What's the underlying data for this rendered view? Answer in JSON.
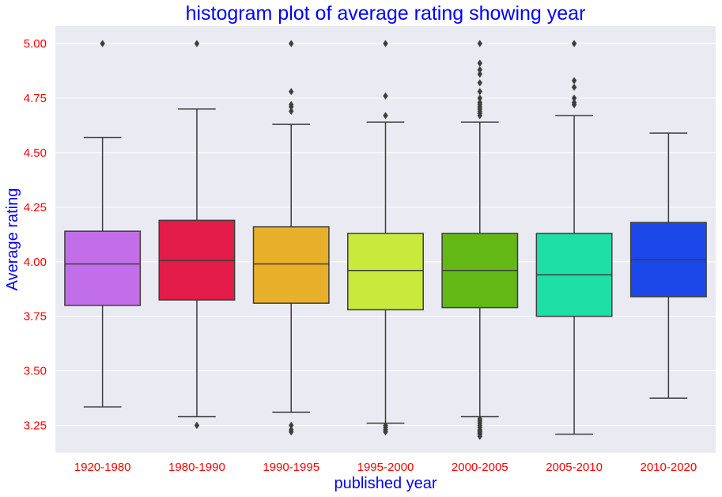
{
  "chart_data": {
    "type": "box",
    "title": "histogram plot of average rating showing year",
    "xlabel": "published year",
    "ylabel": "Average rating",
    "ylim": [
      3.125,
      5.08
    ],
    "yticks": [
      3.25,
      3.5,
      3.75,
      4.0,
      4.25,
      4.5,
      4.75,
      5.0
    ],
    "ytick_labels": [
      "3.25",
      "3.50",
      "3.75",
      "4.00",
      "4.25",
      "4.50",
      "4.75",
      "5.00"
    ],
    "grid": true,
    "colors": {
      "title": "#0000ff",
      "axis_label": "#0000ff",
      "tick_label": "#ff0000",
      "background": "#eaeaf2",
      "grid": "#ffffff",
      "lines": "#3d3d3d"
    },
    "categories": [
      "1920-1980",
      "1980-1990",
      "1990-1995",
      "1995-2000",
      "2000-2005",
      "2005-2010",
      "2010-2020"
    ],
    "boxes": [
      {
        "category": "1920-1980",
        "color": "#c26ee8",
        "whisker_low": 3.335,
        "q1": 3.8,
        "median": 3.99,
        "q3": 4.14,
        "whisker_high": 4.57,
        "outliers": [
          5.0
        ]
      },
      {
        "category": "1980-1990",
        "color": "#e31c4a",
        "whisker_low": 3.29,
        "q1": 3.825,
        "median": 4.005,
        "q3": 4.19,
        "whisker_high": 4.7,
        "outliers": [
          3.25,
          5.0
        ]
      },
      {
        "category": "1990-1995",
        "color": "#e8b02a",
        "whisker_low": 3.31,
        "q1": 3.81,
        "median": 3.99,
        "q3": 4.16,
        "whisker_high": 4.63,
        "outliers": [
          3.22,
          3.23,
          3.25,
          4.69,
          4.71,
          4.72,
          4.78,
          5.0
        ]
      },
      {
        "category": "1995-2000",
        "color": "#c8ea3c",
        "whisker_low": 3.26,
        "q1": 3.78,
        "median": 3.96,
        "q3": 4.13,
        "whisker_high": 4.64,
        "outliers": [
          3.22,
          3.23,
          3.24,
          3.25,
          4.67,
          4.76,
          5.0
        ]
      },
      {
        "category": "2000-2005",
        "color": "#64b816",
        "whisker_low": 3.29,
        "q1": 3.79,
        "median": 3.96,
        "q3": 4.13,
        "whisker_high": 4.64,
        "outliers": [
          3.2,
          3.21,
          3.215,
          3.22,
          3.225,
          3.23,
          3.24,
          3.25,
          3.26,
          3.27,
          3.28,
          4.67,
          4.68,
          4.69,
          4.7,
          4.71,
          4.72,
          4.73,
          4.75,
          4.78,
          4.82,
          4.86,
          4.88,
          4.91,
          5.0
        ]
      },
      {
        "category": "2005-2010",
        "color": "#1edfa6",
        "whisker_low": 3.21,
        "q1": 3.75,
        "median": 3.94,
        "q3": 4.13,
        "whisker_high": 4.67,
        "outliers": [
          4.72,
          4.73,
          4.75,
          4.8,
          4.83,
          5.0
        ]
      },
      {
        "category": "2010-2020",
        "color": "#1c48ea",
        "whisker_low": 3.375,
        "q1": 3.84,
        "median": 4.01,
        "q3": 4.18,
        "whisker_high": 4.59,
        "outliers": []
      }
    ]
  }
}
